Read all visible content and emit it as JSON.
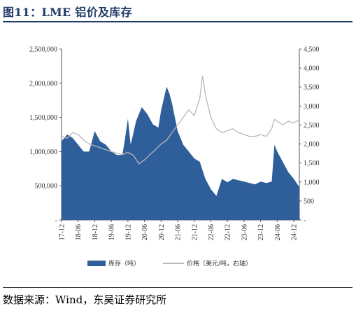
{
  "title": "图11：LME 铝价及库存",
  "source": "数据来源：Wind，东吴证券研究所",
  "colors": {
    "inventory": "#2e5f9a",
    "price": "#b8b8b8",
    "title": "#1f3a68"
  },
  "chart_data": {
    "type": "area",
    "title": "图11：LME 铝价及库存",
    "x_ticks": [
      "17-12",
      "18-06",
      "18-12",
      "19-06",
      "19-12",
      "20-06",
      "20-12",
      "21-06",
      "21-12",
      "22-06",
      "22-12",
      "23-06",
      "23-12",
      "24-06",
      "24-12"
    ],
    "left_axis": {
      "range": [
        0,
        2500000
      ],
      "ticks": [
        "-",
        "500,000",
        "1,000,000",
        "1,500,000",
        "2,000,000",
        "2,500,000"
      ]
    },
    "right_axis": {
      "range": [
        0,
        4500
      ],
      "ticks": [
        "-",
        "500",
        "1,000",
        "1,500",
        "2,000",
        "2,500",
        "3,000",
        "3,500",
        "4,000",
        "4,500"
      ]
    },
    "legend": {
      "placement": "bottom",
      "entries": [
        "库存（吨）",
        "价格（美元/吨，右轴）"
      ]
    },
    "series": [
      {
        "name": "库存（吨）",
        "axis": "left",
        "type": "area",
        "x": [
          "17-12",
          "18-02",
          "18-04",
          "18-06",
          "18-08",
          "18-10",
          "18-12",
          "19-02",
          "19-04",
          "19-06",
          "19-08",
          "19-10",
          "19-11",
          "19-12",
          "20-01",
          "20-03",
          "20-05",
          "20-07",
          "20-09",
          "20-11",
          "20-12",
          "21-02",
          "21-03",
          "21-04",
          "21-06",
          "21-08",
          "21-10",
          "21-12",
          "22-02",
          "22-04",
          "22-06",
          "22-08",
          "22-10",
          "22-12",
          "23-02",
          "23-04",
          "23-06",
          "23-08",
          "23-10",
          "23-12",
          "24-02",
          "24-04",
          "24-05",
          "24-06",
          "24-08",
          "24-10",
          "24-12",
          "25-02"
        ],
        "values": [
          1150000,
          1250000,
          1200000,
          1100000,
          1000000,
          1000000,
          1300000,
          1150000,
          1100000,
          1000000,
          950000,
          950000,
          1200000,
          1480000,
          1100000,
          1450000,
          1650000,
          1550000,
          1400000,
          1350000,
          1600000,
          1950000,
          1850000,
          1700000,
          1300000,
          1100000,
          1000000,
          900000,
          850000,
          600000,
          450000,
          350000,
          600000,
          550000,
          600000,
          580000,
          560000,
          540000,
          520000,
          560000,
          540000,
          560000,
          1100000,
          1000000,
          850000,
          700000,
          600000,
          480000
        ]
      },
      {
        "name": "价格（美元/吨，右轴）",
        "axis": "right",
        "type": "line",
        "x": [
          "17-12",
          "18-02",
          "18-04",
          "18-06",
          "18-08",
          "18-10",
          "18-12",
          "19-02",
          "19-04",
          "19-06",
          "19-08",
          "19-10",
          "19-12",
          "20-02",
          "20-04",
          "20-06",
          "20-08",
          "20-10",
          "20-12",
          "21-02",
          "21-04",
          "21-06",
          "21-08",
          "21-10",
          "21-12",
          "22-02",
          "22-03",
          "22-04",
          "22-06",
          "22-08",
          "22-10",
          "22-12",
          "23-02",
          "23-04",
          "23-06",
          "23-08",
          "23-10",
          "23-12",
          "24-02",
          "24-04",
          "24-05",
          "24-06",
          "24-08",
          "24-10",
          "24-12",
          "25-02"
        ],
        "values": [
          2200,
          2150,
          2300,
          2250,
          2100,
          2000,
          1950,
          1900,
          1850,
          1800,
          1760,
          1720,
          1780,
          1700,
          1480,
          1580,
          1720,
          1850,
          2000,
          2100,
          2300,
          2500,
          2700,
          2900,
          2750,
          3200,
          3800,
          3300,
          2700,
          2400,
          2300,
          2350,
          2400,
          2300,
          2250,
          2200,
          2200,
          2250,
          2200,
          2400,
          2650,
          2600,
          2500,
          2600,
          2550,
          2650
        ]
      }
    ]
  }
}
